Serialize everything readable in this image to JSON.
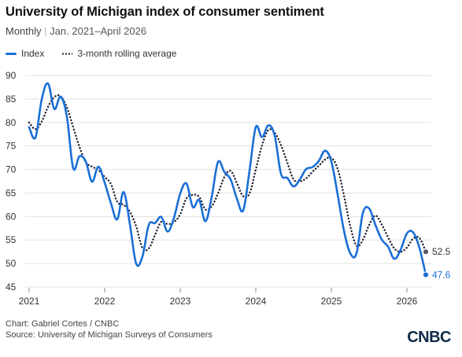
{
  "header": {
    "title": "University of Michigan index of consumer sentiment",
    "subtitle_freq": "Monthly",
    "subtitle_sep": "|",
    "subtitle_range": "Jan. 2021–April 2026"
  },
  "legend": {
    "index_label": "Index",
    "avg_label": "3-month rolling average"
  },
  "footer": {
    "credit": "Chart: Gabriel Cortes / CNBC",
    "source": "Source: University of Michigan Surveys of Consumers"
  },
  "logo": {
    "text": "CNBC"
  },
  "colors": {
    "index": "#1a6fd6",
    "avg": "#1c1c2e",
    "grid": "#e3e3e3",
    "end_dot_avg": "#555b63"
  },
  "chart_data": {
    "type": "line",
    "title": "University of Michigan index of consumer sentiment",
    "subtitle": "Monthly | Jan. 2021–April 2026",
    "xlabel": "",
    "ylabel": "",
    "x_ticks": [
      "2021",
      "2022",
      "2023",
      "2024",
      "2025",
      "2026"
    ],
    "y_ticks": [
      45,
      50,
      55,
      60,
      65,
      70,
      75,
      80,
      85,
      90
    ],
    "ylim": [
      45,
      90
    ],
    "grid": true,
    "legend_position": "top-left",
    "x": [
      "2021-01",
      "2021-02",
      "2021-03",
      "2021-04",
      "2021-05",
      "2021-06",
      "2021-07",
      "2021-08",
      "2021-09",
      "2021-10",
      "2021-11",
      "2021-12",
      "2022-01",
      "2022-02",
      "2022-03",
      "2022-04",
      "2022-05",
      "2022-06",
      "2022-07",
      "2022-08",
      "2022-09",
      "2022-10",
      "2022-11",
      "2022-12",
      "2023-01",
      "2023-02",
      "2023-03",
      "2023-04",
      "2023-05",
      "2023-06",
      "2023-07",
      "2023-08",
      "2023-09",
      "2023-10",
      "2023-11",
      "2023-12",
      "2024-01",
      "2024-02",
      "2024-03",
      "2024-04",
      "2024-05",
      "2024-06",
      "2024-07",
      "2024-08",
      "2024-09",
      "2024-10",
      "2024-11",
      "2024-12",
      "2025-01",
      "2025-02",
      "2025-03",
      "2025-04",
      "2025-05",
      "2025-06",
      "2025-07",
      "2025-08",
      "2025-09",
      "2025-10",
      "2025-11",
      "2025-12",
      "2026-01",
      "2026-02",
      "2026-03",
      "2026-04"
    ],
    "series": [
      {
        "name": "Index",
        "values": [
          79.0,
          76.8,
          84.9,
          88.3,
          82.9,
          85.5,
          81.2,
          70.3,
          72.8,
          71.7,
          67.4,
          70.6,
          67.2,
          62.8,
          59.4,
          65.2,
          58.4,
          50.0,
          51.5,
          58.2,
          58.6,
          59.9,
          56.8,
          59.7,
          64.9,
          67.0,
          62.0,
          63.5,
          59.0,
          64.2,
          71.6,
          69.5,
          67.9,
          63.8,
          61.3,
          69.7,
          79.0,
          76.9,
          79.4,
          77.2,
          69.1,
          68.2,
          66.4,
          67.9,
          70.1,
          70.5,
          71.8,
          74.0,
          71.7,
          64.7,
          57.0,
          52.2,
          52.2,
          60.7,
          61.7,
          58.2,
          55.1,
          53.6,
          51.0,
          52.9,
          56.4,
          56.6,
          53.3,
          47.6
        ]
      },
      {
        "name": "3-month rolling average",
        "values": [
          80.0,
          78.6,
          80.2,
          83.3,
          85.4,
          85.6,
          83.2,
          79.0,
          74.8,
          71.6,
          70.6,
          69.9,
          68.4,
          66.9,
          63.1,
          62.5,
          61.0,
          57.9,
          53.3,
          53.2,
          56.1,
          58.9,
          58.4,
          58.8,
          60.5,
          63.9,
          64.6,
          64.2,
          61.5,
          62.2,
          64.9,
          68.4,
          69.7,
          67.1,
          64.3,
          64.9,
          70.0,
          75.2,
          78.4,
          77.8,
          75.2,
          71.5,
          67.9,
          67.5,
          68.1,
          69.5,
          70.8,
          72.1,
          72.5,
          70.1,
          64.5,
          58.0,
          53.8,
          55.0,
          58.2,
          60.2,
          58.3,
          55.6,
          53.2,
          52.5,
          53.4,
          55.3,
          55.4,
          52.5
        ]
      }
    ],
    "end_labels": [
      {
        "series": "3-month rolling average",
        "text": "52.5"
      },
      {
        "series": "Index",
        "text": "47.6"
      }
    ]
  }
}
